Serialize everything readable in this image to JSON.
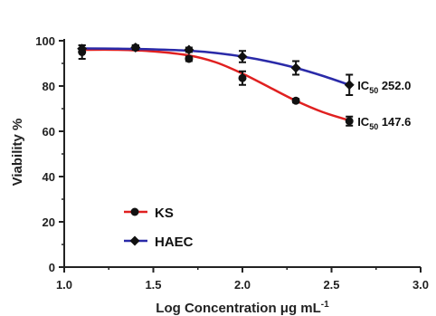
{
  "chart_data": {
    "type": "line",
    "xlabel": "Log Concentration μg mL",
    "xlabel_superscript": "-1",
    "ylabel": "Viability %",
    "xlim": [
      1.0,
      3.0
    ],
    "ylim": [
      0,
      100
    ],
    "x_ticks": [
      "1.0",
      "1.5",
      "2.0",
      "2.5",
      "3.0"
    ],
    "y_ticks": [
      "0",
      "20",
      "40",
      "60",
      "80",
      "100"
    ],
    "legend_position": "bottom-left",
    "series": [
      {
        "name": "KS",
        "color": "#e02020",
        "marker": "circle",
        "x": [
          1.1,
          1.4,
          1.7,
          2.0,
          2.3,
          2.6
        ],
        "y": [
          95,
          97,
          92,
          83.5,
          73.5,
          64.5
        ],
        "error": [
          3,
          1,
          1,
          3,
          0.8,
          2
        ],
        "curve": [
          [
            1.1,
            96
          ],
          [
            1.3,
            96
          ],
          [
            1.5,
            95.3
          ],
          [
            1.7,
            93.5
          ],
          [
            1.85,
            90.5
          ],
          [
            2.0,
            85.5
          ],
          [
            2.15,
            79.5
          ],
          [
            2.3,
            73.5
          ],
          [
            2.45,
            68.5
          ],
          [
            2.6,
            64.8
          ]
        ],
        "annotation_prefix": "IC",
        "annotation_sub": "50",
        "annotation_value": "147.6"
      },
      {
        "name": "HAEC",
        "color": "#2a2aa8",
        "marker": "diamond",
        "x": [
          1.1,
          1.4,
          1.7,
          2.0,
          2.3,
          2.6
        ],
        "y": [
          96.5,
          97,
          96,
          93,
          88,
          80.5
        ],
        "error": [
          1.5,
          1,
          1,
          2.5,
          3,
          4.5
        ],
        "curve": [
          [
            1.1,
            96.6
          ],
          [
            1.3,
            96.5
          ],
          [
            1.5,
            96.2
          ],
          [
            1.7,
            95.6
          ],
          [
            1.85,
            94.6
          ],
          [
            2.0,
            93
          ],
          [
            2.15,
            90.8
          ],
          [
            2.3,
            88
          ],
          [
            2.45,
            84.5
          ],
          [
            2.6,
            80.5
          ]
        ],
        "annotation_prefix": "IC",
        "annotation_sub": "50",
        "annotation_value": "252.0"
      }
    ]
  }
}
